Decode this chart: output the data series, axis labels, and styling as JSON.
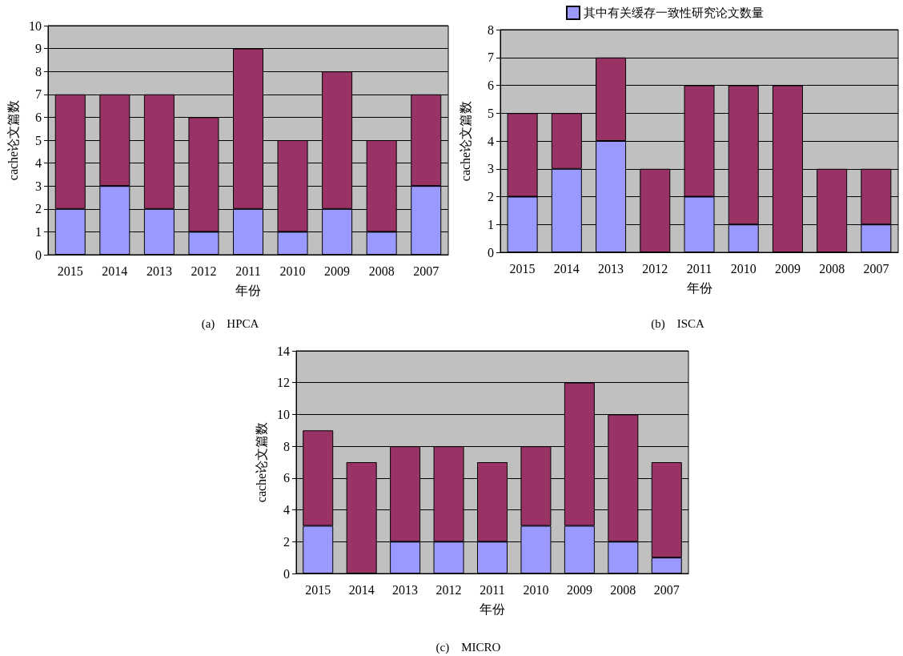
{
  "chart_data": [
    {
      "type": "bar",
      "stacked": true,
      "xlabel": "年份",
      "ylabel": "cache论文篇数",
      "categories": [
        "2015",
        "2014",
        "2013",
        "2012",
        "2011",
        "2010",
        "2009",
        "2008",
        "2007"
      ],
      "series": [
        {
          "color": "#9999ff",
          "values": [
            2,
            3,
            2,
            1,
            2,
            1,
            2,
            1,
            3
          ]
        },
        {
          "color": "#993366",
          "values": [
            5,
            4,
            5,
            5,
            7,
            4,
            6,
            4,
            4
          ]
        }
      ],
      "ylim": [
        0,
        10
      ],
      "yticks": [
        0,
        1,
        2,
        3,
        4,
        5,
        6,
        7,
        8,
        9,
        10
      ],
      "grid": "y",
      "legend": false,
      "annotations": [
        "(a)    HPCA"
      ]
    },
    {
      "type": "bar",
      "stacked": true,
      "xlabel": "年份",
      "ylabel": "cache论文篇数",
      "categories": [
        "2015",
        "2014",
        "2013",
        "2012",
        "2011",
        "2010",
        "2009",
        "2008",
        "2007"
      ],
      "series": [
        {
          "name": "其中有关缓存一致性研究论文数量",
          "color": "#9999ff",
          "values": [
            2,
            3,
            4,
            0,
            2,
            1,
            0,
            0,
            1
          ]
        },
        {
          "color": "#993366",
          "values": [
            3,
            2,
            3,
            3,
            4,
            5,
            6,
            3,
            2
          ]
        }
      ],
      "ylim": [
        0,
        8
      ],
      "yticks": [
        0,
        1,
        2,
        3,
        4,
        5,
        6,
        7,
        8
      ],
      "grid": "y",
      "legend": "top",
      "annotations": [
        "(b)    ISCA"
      ]
    },
    {
      "type": "bar",
      "stacked": true,
      "xlabel": "年份",
      "ylabel": "cache论文篇数",
      "categories": [
        "2015",
        "2014",
        "2013",
        "2012",
        "2011",
        "2010",
        "2009",
        "2008",
        "2007"
      ],
      "series": [
        {
          "color": "#9999ff",
          "values": [
            3,
            0,
            2,
            2,
            2,
            3,
            3,
            2,
            1
          ]
        },
        {
          "color": "#993366",
          "values": [
            6,
            7,
            6,
            6,
            5,
            5,
            9,
            8,
            6
          ]
        }
      ],
      "ylim": [
        0,
        14
      ],
      "yticks": [
        0,
        2,
        4,
        6,
        8,
        10,
        12,
        14
      ],
      "grid": "y",
      "legend": false,
      "annotations": [
        "(c)    MICRO"
      ]
    }
  ]
}
